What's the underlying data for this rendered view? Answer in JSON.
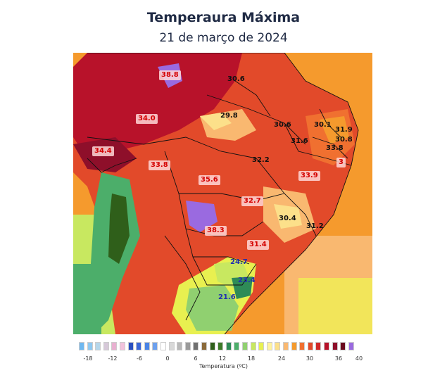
{
  "header": {
    "title": "Temperaura Máxima",
    "subtitle": "21 de março de 2024"
  },
  "map": {
    "values": [
      {
        "text": "38.8",
        "style": "red"
      },
      {
        "text": "30.6",
        "style": "dark"
      },
      {
        "text": "29.8",
        "style": "dark"
      },
      {
        "text": "34.0",
        "style": "red"
      },
      {
        "text": "30.6",
        "style": "dark"
      },
      {
        "text": "30.1",
        "style": "dark"
      },
      {
        "text": "31.9",
        "style": "dark"
      },
      {
        "text": "30.8",
        "style": "dark"
      },
      {
        "text": "31.6",
        "style": "dark"
      },
      {
        "text": "33.8",
        "style": "dark"
      },
      {
        "text": "34.4",
        "style": "red"
      },
      {
        "text": "33.8",
        "style": "red"
      },
      {
        "text": "32.2",
        "style": "dark"
      },
      {
        "text": "33.9",
        "style": "red"
      },
      {
        "text": "35.6",
        "style": "red"
      },
      {
        "text": "32.7",
        "style": "red"
      },
      {
        "text": "30.4",
        "style": "dark"
      },
      {
        "text": "38.3",
        "style": "red"
      },
      {
        "text": "31.2",
        "style": "dark"
      },
      {
        "text": "31.4",
        "style": "red"
      },
      {
        "text": "24.7",
        "style": "blue"
      },
      {
        "text": "23.4",
        "style": "blue"
      },
      {
        "text": "21.6",
        "style": "blue"
      },
      {
        "text": "3",
        "style": "red"
      }
    ]
  },
  "legend": {
    "title": "Temperatura (ºC)",
    "ticks": [
      "-18",
      "-12",
      "-6",
      "0",
      "6",
      "12",
      "18",
      "24",
      "30",
      "36",
      "40"
    ],
    "colors": [
      "#6fb8f0",
      "#8fc8f0",
      "#b5d6ea",
      "#d6c8d8",
      "#e8b0d0",
      "#f2c2dc",
      "#2a4fc0",
      "#3a66d8",
      "#4a84e6",
      "#6ca0ee",
      "#ffffff",
      "#d8d8d8",
      "#b8b8b8",
      "#9a9a9a",
      "#707070",
      "#8b6a3a",
      "#2f5f1a",
      "#3d7a28",
      "#2e8b57",
      "#4cae6a",
      "#90d070",
      "#c8e860",
      "#e8f050",
      "#fff3a0",
      "#fce08a",
      "#f9b870",
      "#f59a2d",
      "#f07030",
      "#e24a2a",
      "#d02828",
      "#b8122a",
      "#8e0f2a",
      "#6a0a1e",
      "#9a6ae0"
    ]
  }
}
